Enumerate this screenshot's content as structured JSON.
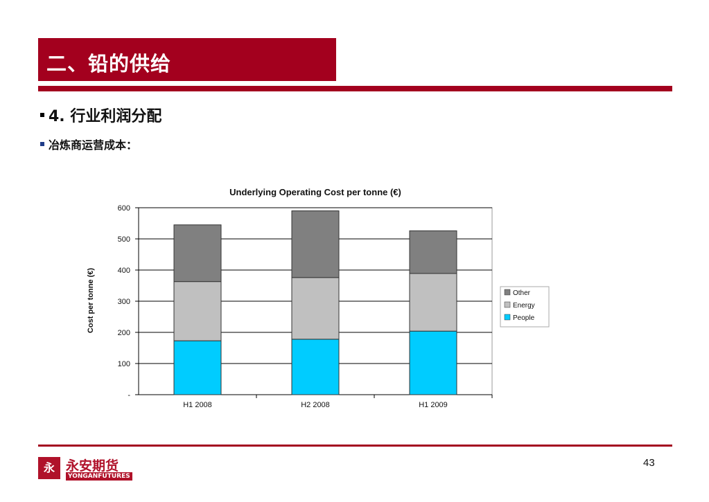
{
  "slide": {
    "title": "二、铅的供给",
    "bullets": [
      {
        "text": "4. 行业利润分配",
        "marker_color": "#000000"
      },
      {
        "text": "冶炼商运营成本：",
        "marker_color": "#1f3c88"
      }
    ],
    "page_number": "43",
    "accent_color": "#a3001e"
  },
  "logo": {
    "mark": "永",
    "chinese": "永安期货",
    "english": "YONGANFUTURES"
  },
  "chart_data": {
    "type": "bar",
    "stacked": true,
    "title": "Underlying Operating Cost per tonne (€)",
    "xlabel": "",
    "ylabel": "Cost per tonne (€)",
    "categories": [
      "H1 2008",
      "H2 2008",
      "H1 2009"
    ],
    "ylim": [
      0,
      600
    ],
    "yticks": [
      0,
      100,
      200,
      300,
      400,
      500,
      600
    ],
    "ytick_labels": [
      "-",
      "100",
      "200",
      "300",
      "400",
      "500",
      "600"
    ],
    "grid": true,
    "legend_position": "right",
    "series": [
      {
        "name": "People",
        "values": [
          173,
          178,
          204
        ],
        "color": "#00ccff"
      },
      {
        "name": "Energy",
        "values": [
          190,
          198,
          185
        ],
        "color": "#c0c0c0"
      },
      {
        "name": "Other",
        "values": [
          182,
          214,
          137
        ],
        "color": "#808080"
      }
    ]
  }
}
